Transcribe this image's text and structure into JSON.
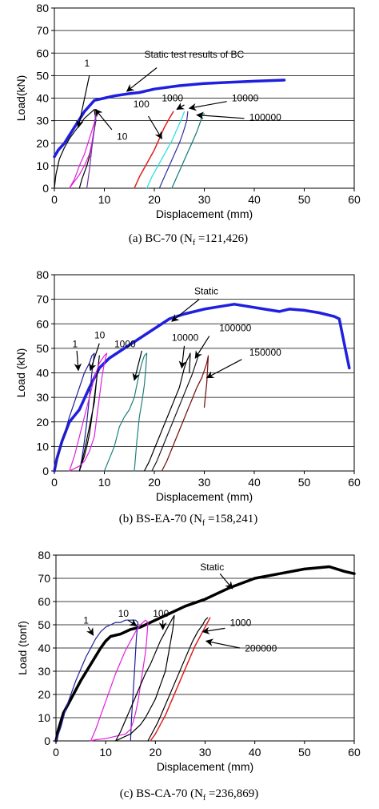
{
  "chart_data": [
    {
      "type": "line",
      "caption": "(a) BC-70 (N",
      "caption_sub": "f",
      "caption_tail": " =121,426)",
      "xlabel": "Displacement (mm)",
      "ylabel": "Load(kN)",
      "xlim": [
        0,
        60
      ],
      "ylim": [
        0,
        80
      ],
      "xticks": [
        0,
        10,
        20,
        30,
        40,
        50,
        60
      ],
      "yticks": [
        0,
        10,
        20,
        30,
        40,
        50,
        60,
        70,
        80
      ],
      "grid": "horizontal",
      "series": [
        {
          "color": "#1f1fe0",
          "width": 3.5,
          "x": [
            0,
            0.8,
            2,
            4,
            6,
            8,
            10,
            12,
            15,
            17,
            20,
            25,
            30,
            35,
            40,
            46
          ],
          "y": [
            14,
            17,
            20,
            27,
            34,
            39,
            40,
            41,
            42,
            42.5,
            44,
            45.5,
            46.5,
            47,
            47.5,
            48
          ]
        },
        {
          "color": "#000000",
          "width": 1.2,
          "x": [
            0,
            0.3,
            1,
            2,
            3,
            4,
            5,
            6,
            7,
            7.5,
            8,
            8.3,
            7.5,
            7,
            6.5,
            6,
            5.5,
            5
          ],
          "y": [
            0,
            6,
            13,
            18,
            22,
            25,
            28,
            31,
            33,
            34,
            35,
            30,
            20,
            14,
            10,
            7,
            4,
            0
          ]
        },
        {
          "color": "#e020e0",
          "width": 1.2,
          "x": [
            3,
            4,
            5,
            6,
            7,
            8,
            8.5,
            8,
            7.5,
            7,
            6,
            5,
            4,
            3
          ],
          "y": [
            0,
            4,
            10,
            15,
            22,
            29,
            34,
            27,
            20,
            15,
            10,
            6,
            3,
            0
          ]
        },
        {
          "color": "#7030a0",
          "width": 1.2,
          "x": [
            6.5,
            7,
            7.5,
            8,
            8.2,
            8.4
          ],
          "y": [
            0,
            8,
            18,
            26,
            32,
            35
          ]
        },
        {
          "color": "#e02020",
          "width": 1.5,
          "x": [
            16,
            17,
            18,
            19,
            20,
            21,
            22,
            23,
            23.8
          ],
          "y": [
            0,
            5,
            9,
            13,
            17,
            22,
            27,
            31,
            34
          ]
        },
        {
          "color": "#20e0e0",
          "width": 1.2,
          "x": [
            18.5,
            19.5,
            20.5,
            21.5,
            22.5,
            23.5,
            24.5,
            25.5,
            26
          ],
          "y": [
            0,
            5,
            9,
            13,
            17,
            21,
            26,
            31,
            34
          ]
        },
        {
          "color": "#3030a0",
          "width": 1.2,
          "x": [
            21,
            22,
            23,
            24,
            25,
            25.8,
            26.5,
            26.7
          ],
          "y": [
            0,
            5,
            10,
            15,
            20,
            25,
            30,
            34
          ]
        },
        {
          "color": "#208080",
          "width": 1.3,
          "x": [
            23.5,
            24.5,
            25.5,
            26.5,
            27.5,
            28.5,
            29.3,
            29.6,
            30
          ],
          "y": [
            0,
            5,
            10,
            15,
            20,
            25,
            30,
            33,
            33
          ]
        }
      ],
      "annotations": [
        {
          "text": "Static test results of BC",
          "tx": 18,
          "ty": 58,
          "ax": 14.5,
          "ay": 43,
          "bx": 20.5,
          "by": 53.5
        },
        {
          "text": "1",
          "tx": 6,
          "ty": 54,
          "ax": 4.8,
          "ay": 27,
          "bx": 7,
          "by": 50
        },
        {
          "text": "10",
          "tx": 12.5,
          "ty": 21.5,
          "ax": 8.2,
          "ay": 35,
          "bx": 11.5,
          "by": 26
        },
        {
          "text": "100",
          "tx": 15.8,
          "ty": 36,
          "ax": 21.5,
          "ay": 22,
          "bx": 18.8,
          "by": 32
        },
        {
          "text": "1000",
          "tx": 21.5,
          "ty": 38.5,
          "ax": 24.5,
          "ay": 35,
          "bx": 26,
          "by": 37
        },
        {
          "text": "10000",
          "tx": 35.5,
          "ty": 38.5,
          "ax": 27,
          "ay": 35.5,
          "bx": 34.5,
          "by": 38.5
        },
        {
          "text": "100000",
          "tx": 39,
          "ty": 30,
          "ax": 28.5,
          "ay": 32.5,
          "bx": 38,
          "by": 31
        }
      ]
    },
    {
      "type": "line",
      "caption": "(b) BS-EA-70 (N",
      "caption_sub": "f",
      "caption_tail": " =158,241)",
      "xlabel": "Displacement (mm)",
      "ylabel": "Load (kN)",
      "xlim": [
        0,
        60
      ],
      "ylim": [
        0,
        80
      ],
      "xticks": [
        0,
        10,
        20,
        30,
        40,
        50,
        60
      ],
      "yticks": [
        0,
        10,
        20,
        30,
        40,
        50,
        60,
        70,
        80
      ],
      "grid": "horizontal",
      "series": [
        {
          "color": "#1f1fe0",
          "width": 3.5,
          "x": [
            0,
            0.5,
            1.5,
            3,
            5,
            7,
            9,
            11,
            14,
            17,
            20,
            23,
            26,
            30,
            33,
            36,
            39,
            42,
            45,
            47,
            50,
            53,
            56,
            57,
            58,
            59
          ],
          "y": [
            0,
            5,
            12,
            20,
            25,
            34,
            42,
            46,
            50,
            54,
            58,
            62,
            64,
            66,
            67,
            68,
            67,
            66,
            65,
            66,
            65.5,
            64.5,
            63,
            62,
            52,
            42
          ]
        },
        {
          "color": "#1f1f9a",
          "width": 1.2,
          "x": [
            0,
            1,
            2,
            3,
            4,
            5,
            6,
            7,
            7.5,
            8,
            7.5,
            7,
            6.5,
            6,
            5.5,
            5
          ],
          "y": [
            0,
            8,
            15,
            22,
            28,
            34,
            40,
            44,
            47,
            48,
            40,
            30,
            20,
            12,
            5,
            0
          ]
        },
        {
          "color": "#000000",
          "width": 1.2,
          "x": [
            5,
            6,
            7,
            8,
            8.5,
            9,
            8.5,
            8,
            7.5,
            7,
            6.5,
            6,
            5.5,
            5
          ],
          "y": [
            0,
            8,
            18,
            28,
            38,
            47,
            38,
            30,
            22,
            15,
            10,
            6,
            3,
            0
          ]
        },
        {
          "color": "#e020e0",
          "width": 1.2,
          "x": [
            3,
            4,
            5,
            6,
            7,
            8,
            9,
            10,
            10.5,
            10,
            9.5,
            9,
            8.5,
            8,
            7,
            6,
            5,
            4,
            3
          ],
          "y": [
            0,
            6,
            14,
            22,
            30,
            38,
            44,
            47,
            48,
            44,
            38,
            30,
            22,
            14,
            8,
            4,
            2,
            1,
            0
          ]
        },
        {
          "color": "#208080",
          "width": 1.2,
          "x": [
            10,
            11,
            12,
            13,
            14,
            15,
            16,
            16.5,
            17,
            17.5,
            18,
            18.5,
            18.3,
            18,
            17.5,
            17,
            16.5,
            16
          ],
          "y": [
            0,
            5,
            10,
            18,
            22,
            25,
            30,
            35,
            40,
            44,
            47,
            48,
            42,
            35,
            28,
            22,
            12,
            0
          ]
        },
        {
          "color": "#000000",
          "width": 1.2,
          "x": [
            18,
            19,
            20,
            21,
            22,
            23,
            24,
            25,
            25.5,
            26,
            26.5,
            27,
            27.2,
            27
          ],
          "y": [
            0,
            4,
            9,
            14,
            19,
            24,
            29,
            34,
            38,
            42,
            45,
            47,
            48,
            40
          ]
        },
        {
          "color": "#1a1a1a",
          "width": 1.2,
          "x": [
            19.5,
            20.5,
            21.5,
            22.5,
            23.5,
            24.5,
            25.5,
            26.5,
            27.5,
            28,
            28.5,
            28.8
          ],
          "y": [
            0,
            4,
            9,
            14,
            19,
            24,
            29,
            34,
            39,
            42,
            45,
            47
          ]
        },
        {
          "color": "#7a1a1a",
          "width": 1.3,
          "x": [
            21.5,
            22.5,
            23.5,
            24.5,
            25.5,
            26.5,
            27.5,
            28.5,
            29.5,
            30,
            30.5,
            30.8,
            30.5,
            30
          ],
          "y": [
            0,
            4,
            9,
            14,
            19,
            24,
            29,
            34,
            38,
            41,
            44,
            47,
            36,
            26
          ]
        }
      ],
      "annotations": [
        {
          "text": "Static",
          "tx": 28,
          "ty": 72,
          "ax": 23.5,
          "ay": 61,
          "bx": 29,
          "by": 70
        },
        {
          "text": "1",
          "tx": 3.6,
          "ty": 50.5,
          "ax": 4.8,
          "ay": 41,
          "bx": 4.5,
          "by": 49
        },
        {
          "text": "10",
          "tx": 8,
          "ty": 54,
          "ax": 7.2,
          "ay": 41,
          "bx": 9,
          "by": 52
        },
        {
          "text": "1000",
          "tx": 12,
          "ty": 50.5,
          "ax": 16,
          "ay": 37,
          "bx": 17.5,
          "by": 49
        },
        {
          "text": "10000",
          "tx": 23.5,
          "ty": 53,
          "ax": 25.5,
          "ay": 42,
          "bx": 26,
          "by": 51
        },
        {
          "text": "100000",
          "tx": 33,
          "ty": 57,
          "ax": 28.2,
          "ay": 46,
          "bx": 31,
          "by": 55
        },
        {
          "text": "150000",
          "tx": 39,
          "ty": 47,
          "ax": 30.5,
          "ay": 38,
          "bx": 37.5,
          "by": 45.5
        }
      ]
    },
    {
      "type": "line",
      "caption": "(c) BS-CA-70 (N",
      "caption_sub": "f",
      "caption_tail": " =236,869)",
      "xlabel": "Displacement (mm)",
      "ylabel": "Load (tonf)",
      "xlim": [
        0,
        60
      ],
      "ylim": [
        0,
        80
      ],
      "xticks": [
        0,
        10,
        20,
        30,
        40,
        50,
        60
      ],
      "yticks": [
        0,
        10,
        20,
        30,
        40,
        50,
        60,
        70,
        80
      ],
      "grid": "horizontal",
      "series": [
        {
          "color": "#000000",
          "width": 3.5,
          "x": [
            0,
            0.5,
            1.5,
            3,
            5,
            7,
            9,
            10,
            11,
            13,
            15,
            17,
            20,
            23,
            26,
            30,
            35,
            40,
            45,
            50,
            55,
            58,
            60
          ],
          "y": [
            0,
            5,
            12,
            18,
            26,
            33,
            40,
            43,
            45,
            46,
            48,
            49,
            52,
            55,
            58,
            61,
            66,
            70,
            72,
            74,
            75,
            73,
            72
          ]
        },
        {
          "color": "#1f1f9a",
          "width": 1.2,
          "x": [
            0,
            1,
            2,
            3,
            4,
            5,
            6,
            7,
            8,
            9,
            10,
            11,
            12,
            13,
            14,
            15,
            16,
            16.5,
            16.2,
            16,
            15.8,
            15.5,
            15.2,
            15
          ],
          "y": [
            0,
            6,
            14,
            20,
            26,
            31,
            36,
            40,
            44,
            47,
            49,
            50,
            51,
            51,
            52,
            52,
            52,
            51,
            45,
            38,
            30,
            20,
            10,
            0
          ]
        },
        {
          "color": "#e020e0",
          "width": 1.2,
          "x": [
            7,
            8,
            9,
            10,
            11,
            12,
            13,
            14,
            15,
            16,
            17,
            18,
            18.5,
            18.3,
            18,
            17.5,
            17,
            16.5,
            16,
            15.5,
            15,
            14,
            12,
            10,
            8,
            7
          ],
          "y": [
            0,
            5,
            11,
            17,
            23,
            29,
            34,
            39,
            43,
            47,
            50,
            52,
            51,
            45,
            38,
            31,
            24,
            17,
            12,
            8,
            5,
            3,
            2,
            1,
            0.5,
            0
          ]
        },
        {
          "color": "#000000",
          "width": 1.2,
          "x": [
            12,
            13,
            14,
            15,
            16,
            17,
            18,
            19,
            20,
            21,
            22,
            23,
            23.5,
            23.8,
            23.5,
            23,
            22.5,
            22,
            21,
            20,
            19,
            18,
            17,
            16,
            15,
            14,
            13,
            12
          ],
          "y": [
            0,
            4,
            9,
            14,
            19,
            24,
            29,
            33,
            38,
            43,
            47,
            51,
            53,
            54,
            48,
            42,
            36,
            30,
            24,
            18,
            14,
            10,
            7,
            5,
            3,
            2,
            1,
            0
          ]
        },
        {
          "color": "#000000",
          "width": 1.2,
          "x": [
            18.5,
            19.5,
            20.5,
            21.5,
            22.5,
            23.5,
            24.5,
            25.5,
            26.5,
            27.5,
            28.5,
            29.5,
            30,
            30.5
          ],
          "y": [
            0,
            4,
            8,
            13,
            18,
            23,
            28,
            33,
            38,
            43,
            47,
            50,
            52,
            53
          ]
        },
        {
          "color": "#e02020",
          "width": 1.5,
          "x": [
            19,
            20,
            21,
            22,
            23,
            24,
            25,
            26,
            27,
            28,
            29,
            30,
            30.5,
            31
          ],
          "y": [
            0,
            3,
            7,
            11,
            16,
            21,
            26,
            31,
            36,
            41,
            45,
            49,
            51,
            53
          ]
        }
      ],
      "annotations": [
        {
          "text": "Static",
          "tx": 29,
          "ty": 73.5,
          "ax": 35.5,
          "ay": 65.5,
          "bx": 33,
          "by": 72
        },
        {
          "text": "1",
          "tx": 5.5,
          "ty": 50.5,
          "ax": 7.5,
          "ay": 45.5,
          "bx": 6.5,
          "by": 49
        },
        {
          "text": "10",
          "tx": 12.5,
          "ty": 53.5,
          "ax": 16.2,
          "ay": 49.5,
          "bx": 14.5,
          "by": 52
        },
        {
          "text": "100",
          "tx": 19.5,
          "ty": 53.5,
          "ax": 21.5,
          "ay": 48,
          "bx": 21.5,
          "by": 52
        },
        {
          "text": "1000",
          "tx": 35,
          "ty": 49.5,
          "ax": 29.5,
          "ay": 47,
          "bx": 34,
          "by": 48.5
        },
        {
          "text": "200000",
          "tx": 38,
          "ty": 38.5,
          "ax": 30.2,
          "ay": 43,
          "bx": 37,
          "by": 40
        }
      ]
    }
  ]
}
